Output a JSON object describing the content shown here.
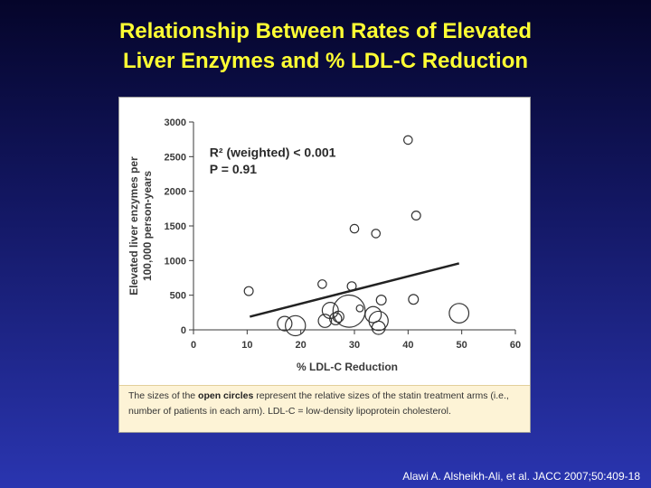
{
  "slide": {
    "title_line1": "Relationship Between Rates of Elevated",
    "title_line2": "Liver Enzymes and % LDL-C Reduction",
    "citation": "Alawi A. Alsheikh-Ali, et al. JACC 2007;50:409-18"
  },
  "caption": {
    "part1": "The sizes of the ",
    "bold": "open circles",
    "part2": " represent the relative sizes of the statin treatment arms (i.e., number of patients in each arm). LDL-C = low-density lipoprotein cholesterol."
  },
  "colors": {
    "title": "#ffff33",
    "marker": "#333333",
    "line": "#222222"
  },
  "chart_data": {
    "type": "scatter",
    "xlabel": "% LDL-C Reduction",
    "ylabel_line1": "Elevated liver enzymes per",
    "ylabel_line2": "100,000 person-years",
    "xlim": [
      0,
      60
    ],
    "ylim": [
      0,
      3000
    ],
    "xticks": [
      0,
      10,
      20,
      30,
      40,
      50,
      60
    ],
    "yticks": [
      0,
      500,
      1000,
      1500,
      2000,
      2500,
      3000
    ],
    "xtick_labels": [
      "0",
      "10",
      "20",
      "30",
      "40",
      "50",
      "60"
    ],
    "ytick_labels": [
      "0",
      "500",
      "1000",
      "1500",
      "2000",
      "2500",
      "3000"
    ],
    "annotation_line1": "R² (weighted) < 0.001",
    "annotation_line2": "P = 0.91",
    "grid": false,
    "points": [
      {
        "x": 10.3,
        "y": 560,
        "size": 0.5
      },
      {
        "x": 17,
        "y": 90,
        "size": 1.3
      },
      {
        "x": 19,
        "y": 60,
        "size": 2.5
      },
      {
        "x": 24,
        "y": 660,
        "size": 0.45
      },
      {
        "x": 24.5,
        "y": 130,
        "size": 1.1
      },
      {
        "x": 25.5,
        "y": 280,
        "size": 1.6
      },
      {
        "x": 26.5,
        "y": 160,
        "size": 0.9
      },
      {
        "x": 27,
        "y": 190,
        "size": 0.75
      },
      {
        "x": 29,
        "y": 270,
        "size": 6.5
      },
      {
        "x": 29.5,
        "y": 630,
        "size": 0.5
      },
      {
        "x": 30,
        "y": 1460,
        "size": 0.45
      },
      {
        "x": 31,
        "y": 310,
        "size": 0.3
      },
      {
        "x": 33.5,
        "y": 220,
        "size": 1.6
      },
      {
        "x": 34,
        "y": 1390,
        "size": 0.45
      },
      {
        "x": 34.5,
        "y": 30,
        "size": 1.1
      },
      {
        "x": 34.5,
        "y": 130,
        "size": 2.3
      },
      {
        "x": 35,
        "y": 430,
        "size": 0.6
      },
      {
        "x": 40,
        "y": 2740,
        "size": 0.45
      },
      {
        "x": 41,
        "y": 440,
        "size": 0.6
      },
      {
        "x": 41.5,
        "y": 1650,
        "size": 0.5
      },
      {
        "x": 49.5,
        "y": 240,
        "size": 2.4
      }
    ],
    "regression_line": {
      "x": [
        10.5,
        49.5
      ],
      "y": [
        190,
        960
      ]
    }
  }
}
